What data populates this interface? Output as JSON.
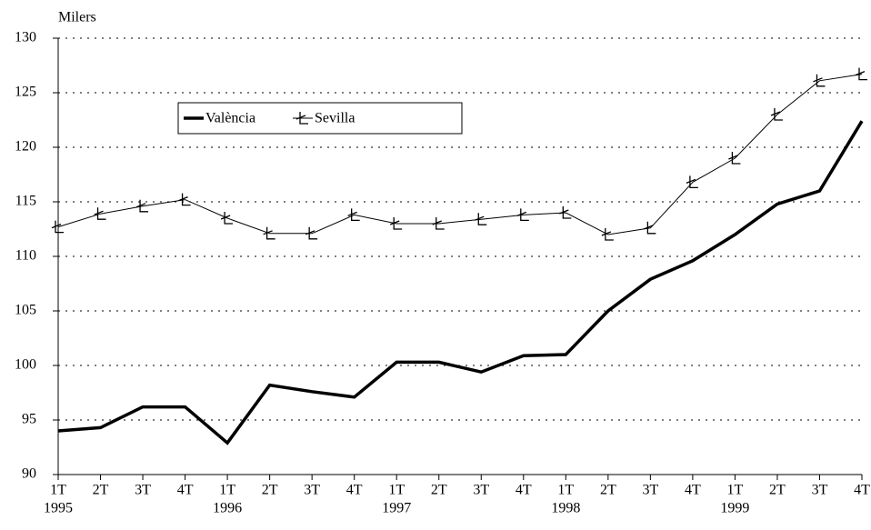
{
  "chart_data": {
    "type": "line",
    "y_label": "Milers",
    "categories": [
      "1T",
      "2T",
      "3T",
      "4T",
      "1T",
      "2T",
      "3T",
      "4T",
      "1T",
      "2T",
      "3T",
      "4T",
      "1T",
      "2T",
      "3T",
      "4T",
      "1T",
      "2T",
      "3T",
      "4T"
    ],
    "years": [
      "1995",
      null,
      null,
      null,
      "1996",
      null,
      null,
      null,
      "1997",
      null,
      null,
      null,
      "1998",
      null,
      null,
      null,
      "1999",
      null,
      null,
      null
    ],
    "series": [
      {
        "name": "València",
        "color": "#000000",
        "values": [
          94.0,
          94.3,
          96.2,
          96.2,
          92.9,
          98.2,
          97.6,
          97.1,
          100.3,
          100.3,
          99.4,
          100.9,
          101.0,
          105.0,
          107.9,
          109.6,
          112.0,
          114.8,
          116.0,
          122.4
        ]
      },
      {
        "name": "Sevilla",
        "color": "#000000",
        "values": [
          112.7,
          113.9,
          114.6,
          115.2,
          113.5,
          112.1,
          112.1,
          113.8,
          113.0,
          113.0,
          113.4,
          113.8,
          114.0,
          112.0,
          112.6,
          116.8,
          119.0,
          123.0,
          126.1,
          126.7
        ]
      }
    ],
    "ylim": [
      90,
      130
    ],
    "yticks": [
      90,
      95,
      100,
      105,
      110,
      115,
      120,
      125,
      130
    ],
    "grid": true
  }
}
